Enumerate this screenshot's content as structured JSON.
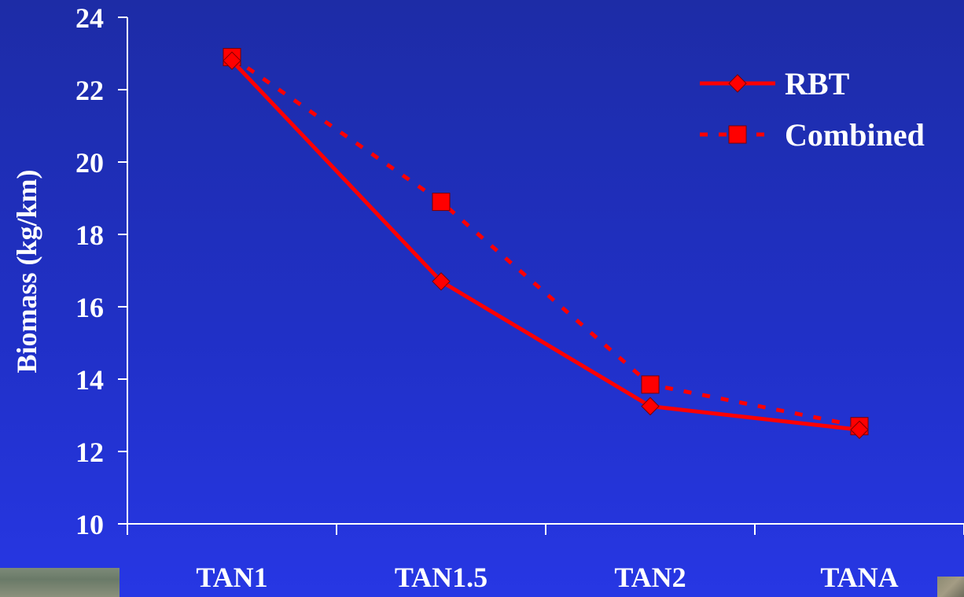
{
  "chart_data": {
    "type": "line",
    "categories": [
      "TAN1",
      "TAN1.5",
      "TAN2",
      "TANA"
    ],
    "ylabel": "Biomass (kg/km)",
    "xlabel": "",
    "ylim": [
      10,
      24
    ],
    "yticks": [
      10,
      12,
      14,
      16,
      18,
      20,
      22,
      24
    ],
    "grid": false,
    "legend_position": "top-right",
    "series": [
      {
        "name": "RBT",
        "values": [
          22.8,
          16.7,
          13.25,
          12.6
        ],
        "line_style": "solid",
        "marker": "diamond",
        "color": "#ff0000"
      },
      {
        "name": "Combined",
        "values": [
          22.9,
          18.9,
          13.85,
          12.7
        ],
        "line_style": "dotted",
        "marker": "square",
        "color": "#ff0000"
      }
    ]
  },
  "colors": {
    "axis": "#ffffff",
    "series": "#ff0000"
  }
}
